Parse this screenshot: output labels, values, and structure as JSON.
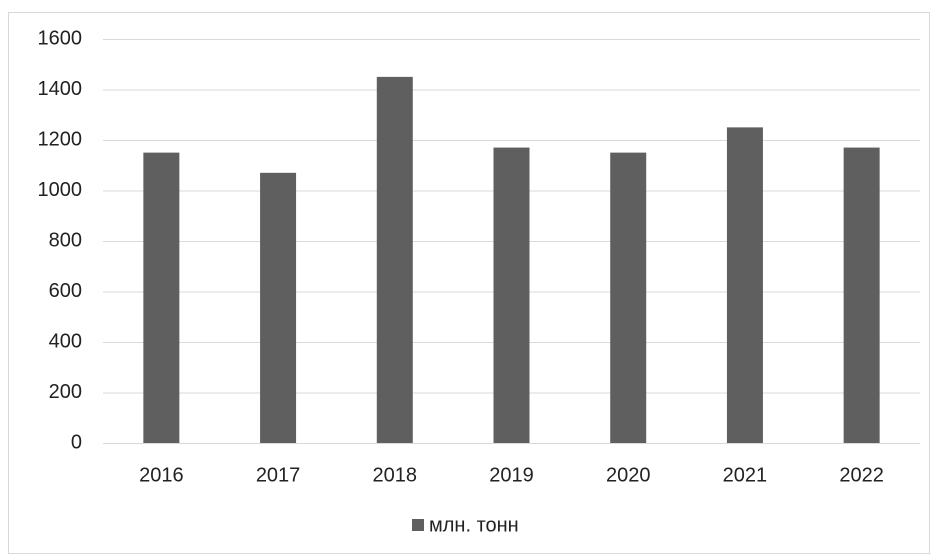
{
  "chart_data": {
    "type": "bar",
    "categories": [
      "2016",
      "2017",
      "2018",
      "2019",
      "2020",
      "2021",
      "2022"
    ],
    "series": [
      {
        "name": "млн. тонн",
        "color": "#5f5f5f",
        "values": [
          1150,
          1070,
          1450,
          1170,
          1150,
          1250,
          1170
        ]
      }
    ],
    "ylim": [
      0,
      1600
    ],
    "yticks": [
      0,
      200,
      400,
      600,
      800,
      1000,
      1200,
      1400,
      1600
    ],
    "grid": true,
    "legend": "bottom"
  }
}
